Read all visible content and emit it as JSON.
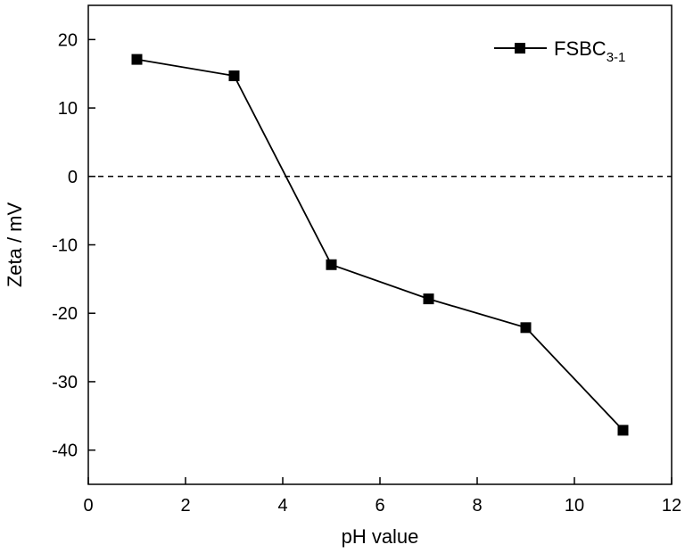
{
  "chart_data": {
    "type": "line",
    "xlabel": "pH value",
    "ylabel": "Zeta / mV",
    "xlim": [
      0,
      12
    ],
    "ylim": [
      -45,
      25
    ],
    "xticks": [
      0,
      2,
      4,
      6,
      8,
      10,
      12
    ],
    "yticks": [
      20,
      10,
      0,
      -10,
      -20,
      -30,
      -40
    ],
    "xtick_labels": [
      "0",
      "2",
      "4",
      "6",
      "8",
      "10",
      "12"
    ],
    "ytick_labels": [
      "20",
      "10",
      "0",
      "-10",
      "-20",
      "-30",
      "-40"
    ],
    "grid": false,
    "reference_line": {
      "y": 0,
      "style": "dashed"
    },
    "legend_position": "top-right",
    "series": [
      {
        "name": "FSBC3-1",
        "legend_main": "FSBC",
        "legend_sub": "3-1",
        "marker": "square",
        "color": "#000000",
        "x": [
          1,
          3,
          5,
          7,
          9,
          11
        ],
        "y": [
          17.1,
          14.7,
          -12.9,
          -17.9,
          -22.1,
          -37.1
        ]
      }
    ]
  }
}
